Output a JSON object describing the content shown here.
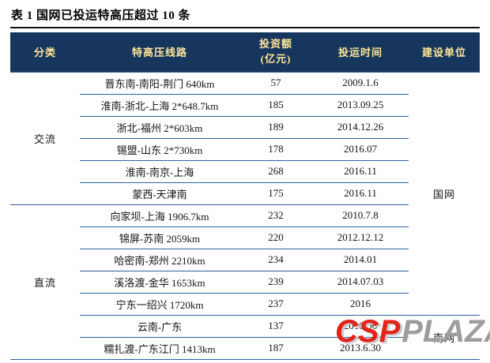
{
  "title": "表 1  国网已投运特高压超过 10 条",
  "colors": {
    "header_bg": "#17365d",
    "header_text": "#ffe699",
    "border": "#31619c",
    "rule": "#111111",
    "wm_red": "#e2231a",
    "wm_gray": "#9d9d9d"
  },
  "table": {
    "headers": {
      "category": "分类",
      "line": "特高压线路",
      "investment_line1": "投资额",
      "investment_line2": "(亿元)",
      "date": "投运时间",
      "builder": "建设单位"
    },
    "groups": [
      {
        "label": "交流"
      },
      {
        "label": "直流"
      }
    ],
    "builders": [
      {
        "label": "国网"
      },
      {
        "label": "南网"
      }
    ],
    "rows": [
      {
        "line": "晋东南-南阳-荆门 640km",
        "investment": "57",
        "date": "2009.1.6"
      },
      {
        "line": "淮南-浙北-上海 2*648.7km",
        "investment": "185",
        "date": "2013.09.25"
      },
      {
        "line": "浙北-福州 2*603km",
        "investment": "189",
        "date": "2014.12.26"
      },
      {
        "line": "锡盟-山东 2*730km",
        "investment": "178",
        "date": "2016.07"
      },
      {
        "line": "淮南-南京-上海",
        "investment": "268",
        "date": "2016.11"
      },
      {
        "line": "蒙西-天津南",
        "investment": "175",
        "date": "2016.11"
      },
      {
        "line": "向家坝-上海 1906.7km",
        "investment": "232",
        "date": "2010.7.8"
      },
      {
        "line": "锦屏-苏南 2059km",
        "investment": "220",
        "date": "2012.12.12"
      },
      {
        "line": "哈密南-郑州 2210km",
        "investment": "234",
        "date": "2014.01"
      },
      {
        "line": "溪洛渡-金华 1653km",
        "investment": "239",
        "date": "2014.07.03"
      },
      {
        "line": "宁东一绍兴 1720km",
        "investment": "237",
        "date": "2016"
      },
      {
        "line": "云南-广东",
        "investment": "137",
        "date": "2010.06"
      },
      {
        "line": "糯扎渡-广东江门 1413km",
        "investment": "187",
        "date": "2013.6.30"
      }
    ]
  },
  "watermark": {
    "part1": "CSP",
    "part2": "PLAZA"
  }
}
